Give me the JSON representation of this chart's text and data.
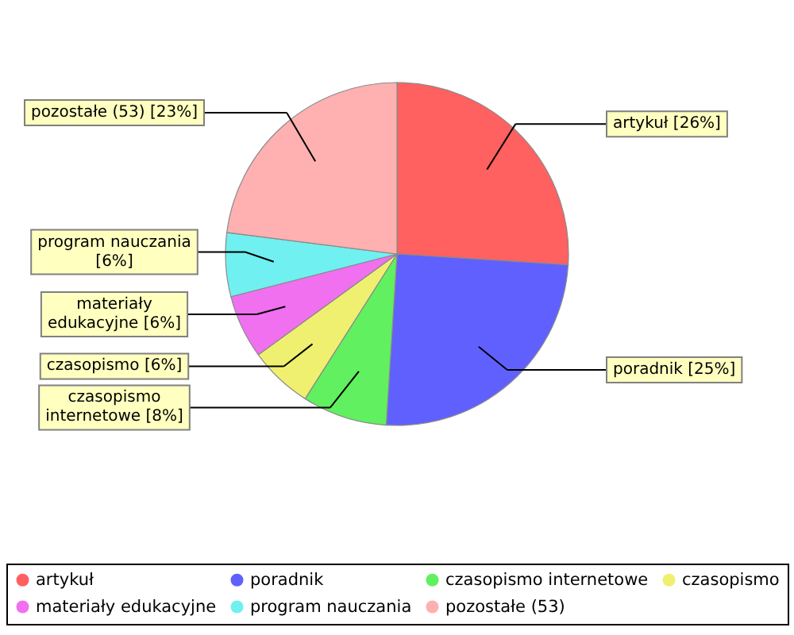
{
  "chart_data": {
    "type": "pie",
    "categories": [
      "artykuł",
      "poradnik",
      "czasopismo internetowe",
      "czasopismo",
      "materiały edukacyjne",
      "program nauczania",
      "pozostałe (53)"
    ],
    "values": [
      26,
      25,
      8,
      6,
      6,
      6,
      23
    ],
    "colors": [
      "#ff6060",
      "#6060ff",
      "#60f060",
      "#f0f070",
      "#f070f0",
      "#70f0f0",
      "#ffb0b0"
    ],
    "value_labels": [
      "artykuł [26%]",
      "poradnik [25%]",
      "czasopismo internetowe [8%]",
      "czasopismo [6%]",
      "materiały edukacyjne [6%]",
      "program nauczania [6%]",
      "pozostałe (53) [23%]"
    ],
    "legend": "bottom"
  }
}
